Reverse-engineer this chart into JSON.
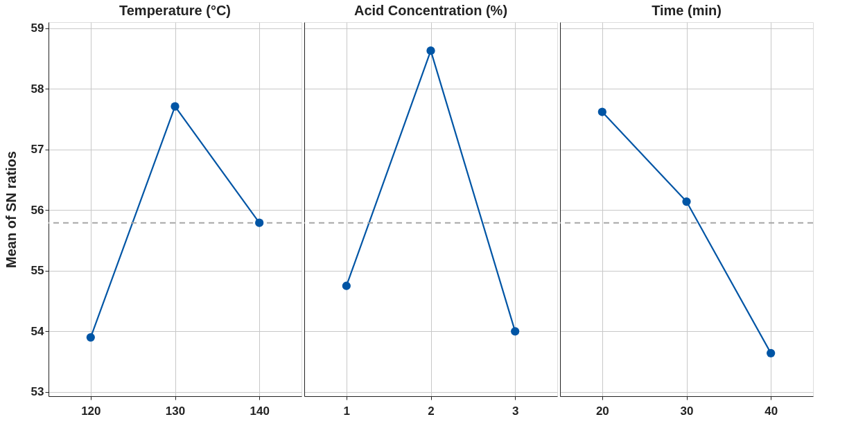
{
  "chart_data": [
    {
      "type": "line",
      "title": "Temperature (°C)",
      "ylabel": "Mean of SN ratios",
      "categories": [
        "120",
        "130",
        "140"
      ],
      "values": [
        53.9,
        57.71,
        55.79
      ],
      "color": "#0055a5",
      "ylim": [
        52.93,
        59.1
      ],
      "yticks": [
        53,
        54,
        55,
        56,
        57,
        58,
        59
      ],
      "grid": true,
      "marker": "circle",
      "ref_lines": [
        {
          "axis": "y",
          "value": 55.79,
          "color": "#a6a6a6",
          "line_style": "dashed"
        }
      ]
    },
    {
      "type": "line",
      "title": "Acid Concentration (%)",
      "categories": [
        "1",
        "2",
        "3"
      ],
      "values": [
        54.75,
        58.63,
        54.0
      ],
      "color": "#0055a5",
      "ylim": [
        52.93,
        59.1
      ],
      "yticks": [
        53,
        54,
        55,
        56,
        57,
        58,
        59
      ],
      "grid": true,
      "marker": "circle",
      "tick_labels": "x",
      "ref_lines": [
        {
          "axis": "y",
          "value": 55.79,
          "color": "#a6a6a6",
          "line_style": "dashed"
        }
      ]
    },
    {
      "type": "line",
      "title": "Time (min)",
      "categories": [
        "20",
        "30",
        "40"
      ],
      "values": [
        57.62,
        56.14,
        53.64
      ],
      "color": "#0055a5",
      "ylim": [
        52.93,
        59.1
      ],
      "yticks": [
        53,
        54,
        55,
        56,
        57,
        58,
        59
      ],
      "grid": true,
      "marker": "circle",
      "tick_labels": "x",
      "ref_lines": [
        {
          "axis": "y",
          "value": 55.79,
          "color": "#a6a6a6",
          "line_style": "dashed"
        }
      ]
    }
  ]
}
